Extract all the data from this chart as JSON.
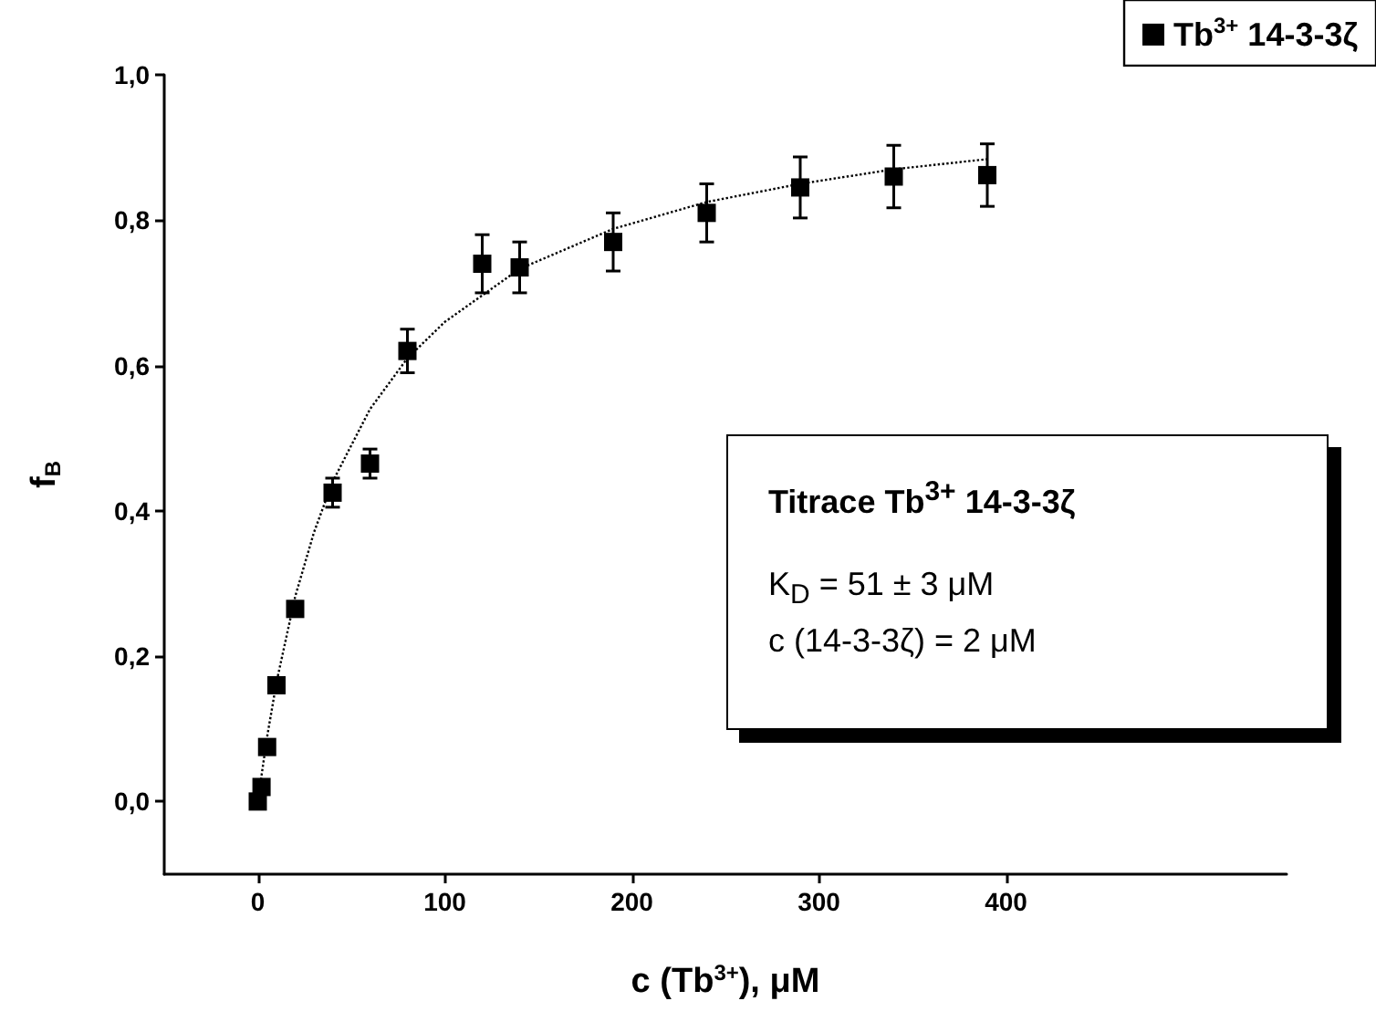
{
  "chart_data": {
    "type": "scatter",
    "xlabel": "c (Tb$^{3+}$), μM",
    "ylabel": "f$_{B}$",
    "annotations": [
      "Titrace Tb$^{3+}$ 14-3-3ζ",
      "K$_{D}$ = 51 ± 3 μM",
      "c (14-3-3ζ) = 2 μM"
    ],
    "xlim": [
      -50,
      550
    ],
    "xticks": [
      0,
      100,
      200,
      300,
      400
    ],
    "ylim": [
      -0.1,
      1.0
    ],
    "yticks": [
      {
        "value": 0,
        "label": "0,0"
      },
      {
        "value": 0.2,
        "label": "0,2"
      },
      {
        "value": 0.4,
        "label": "0,4"
      },
      {
        "value": 0.6,
        "label": "0,6"
      },
      {
        "value": 0.8,
        "label": "0,8"
      },
      {
        "value": 1.0,
        "label": "1,0"
      }
    ],
    "grid": false,
    "legend": "top right",
    "series": [
      {
        "name": "Tb$^{3+}$ 14-3-3ζ",
        "color": "#000000",
        "marker": "square",
        "x": [
          0,
          2,
          5,
          10,
          20,
          40,
          60,
          80,
          120,
          140,
          190,
          240,
          290,
          340,
          390
        ],
        "values": [
          0.0,
          0.02,
          0.075,
          0.16,
          0.265,
          0.425,
          0.465,
          0.62,
          0.74,
          0.735,
          0.77,
          0.81,
          0.845,
          0.86,
          0.862
        ],
        "errors": [
          null,
          null,
          null,
          null,
          0.01,
          0.02,
          0.02,
          0.03,
          0.04,
          0.035,
          0.04,
          0.04,
          0.042,
          0.043,
          0.043
        ]
      },
      {
        "type": "line",
        "color": "#000000",
        "marker": "none",
        "line_style": "dotted",
        "x": [
          0,
          5,
          10,
          20,
          30,
          40,
          60,
          80,
          100,
          140,
          190,
          240,
          290,
          340,
          390
        ],
        "values": [
          0,
          0.089,
          0.164,
          0.282,
          0.37,
          0.44,
          0.54,
          0.61,
          0.66,
          0.733,
          0.788,
          0.825,
          0.85,
          0.87,
          0.884
        ]
      }
    ]
  }
}
